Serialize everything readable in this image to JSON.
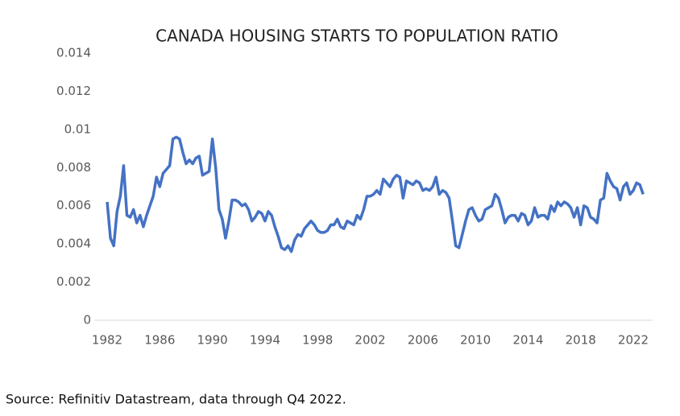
{
  "chart_data": {
    "type": "line",
    "title": "CANADA HOUSING STARTS TO POPULATION RATIO",
    "source": "Source: Refinitiv Datastream, data through Q4 2022.",
    "x": [
      1982,
      1982.25,
      1982.5,
      1982.75,
      1983,
      1983.25,
      1983.5,
      1983.75,
      1984,
      1984.25,
      1984.5,
      1984.75,
      1985,
      1985.25,
      1985.5,
      1985.75,
      1986,
      1986.25,
      1986.5,
      1986.75,
      1987,
      1987.25,
      1987.5,
      1987.75,
      1988,
      1988.25,
      1988.5,
      1988.75,
      1989,
      1989.25,
      1989.5,
      1989.75,
      1990,
      1990.25,
      1990.5,
      1990.75,
      1991,
      1991.25,
      1991.5,
      1991.75,
      1992,
      1992.25,
      1992.5,
      1992.75,
      1993,
      1993.25,
      1993.5,
      1993.75,
      1994,
      1994.25,
      1994.5,
      1994.75,
      1995,
      1995.25,
      1995.5,
      1995.75,
      1996,
      1996.25,
      1996.5,
      1996.75,
      1997,
      1997.25,
      1997.5,
      1997.75,
      1998,
      1998.25,
      1998.5,
      1998.75,
      1999,
      1999.25,
      1999.5,
      1999.75,
      2000,
      2000.25,
      2000.5,
      2000.75,
      2001,
      2001.25,
      2001.5,
      2001.75,
      2002,
      2002.25,
      2002.5,
      2002.75,
      2003,
      2003.25,
      2003.5,
      2003.75,
      2004,
      2004.25,
      2004.5,
      2004.75,
      2005,
      2005.25,
      2005.5,
      2005.75,
      2006,
      2006.25,
      2006.5,
      2006.75,
      2007,
      2007.25,
      2007.5,
      2007.75,
      2008,
      2008.25,
      2008.5,
      2008.75,
      2009,
      2009.25,
      2009.5,
      2009.75,
      2010,
      2010.25,
      2010.5,
      2010.75,
      2011,
      2011.25,
      2011.5,
      2011.75,
      2012,
      2012.25,
      2012.5,
      2012.75,
      2013,
      2013.25,
      2013.5,
      2013.75,
      2014,
      2014.25,
      2014.5,
      2014.75,
      2015,
      2015.25,
      2015.5,
      2015.75,
      2016,
      2016.25,
      2016.5,
      2016.75,
      2017,
      2017.25,
      2017.5,
      2017.75,
      2018,
      2018.25,
      2018.5,
      2018.75,
      2019,
      2019.25,
      2019.5,
      2019.75,
      2020,
      2020.25,
      2020.5,
      2020.75,
      2021,
      2021.25,
      2021.5,
      2021.75,
      2022,
      2022.25,
      2022.5,
      2022.75
    ],
    "series": [
      {
        "color": "#4472c4",
        "values": [
          0.0062,
          0.0043,
          0.0039,
          0.0057,
          0.0065,
          0.0081,
          0.0055,
          0.0054,
          0.0058,
          0.0051,
          0.0055,
          0.0049,
          0.0055,
          0.006,
          0.0065,
          0.0075,
          0.007,
          0.0077,
          0.0079,
          0.0081,
          0.0095,
          0.0096,
          0.0095,
          0.0088,
          0.0082,
          0.0084,
          0.0082,
          0.0085,
          0.0086,
          0.0076,
          0.0077,
          0.0078,
          0.0095,
          0.008,
          0.0058,
          0.0053,
          0.0043,
          0.0052,
          0.0063,
          0.0063,
          0.0062,
          0.006,
          0.0061,
          0.0058,
          0.0052,
          0.0054,
          0.0057,
          0.0056,
          0.0052,
          0.0057,
          0.0055,
          0.0049,
          0.0044,
          0.0038,
          0.0037,
          0.0039,
          0.0036,
          0.0042,
          0.0045,
          0.0044,
          0.0048,
          0.005,
          0.0052,
          0.005,
          0.0047,
          0.0046,
          0.0046,
          0.0047,
          0.005,
          0.005,
          0.0053,
          0.0049,
          0.0048,
          0.0052,
          0.0051,
          0.005,
          0.0055,
          0.0053,
          0.0058,
          0.0065,
          0.0065,
          0.0066,
          0.0068,
          0.0066,
          0.0074,
          0.0072,
          0.007,
          0.0074,
          0.0076,
          0.0075,
          0.0064,
          0.0073,
          0.0072,
          0.0071,
          0.0073,
          0.0072,
          0.0068,
          0.0069,
          0.0068,
          0.007,
          0.0075,
          0.0066,
          0.0068,
          0.0067,
          0.0064,
          0.0052,
          0.0039,
          0.0038,
          0.0045,
          0.0052,
          0.0058,
          0.0059,
          0.0055,
          0.0052,
          0.0053,
          0.0058,
          0.0059,
          0.006,
          0.0066,
          0.0064,
          0.0058,
          0.0051,
          0.0054,
          0.0055,
          0.0055,
          0.0052,
          0.0056,
          0.0055,
          0.005,
          0.0052,
          0.0059,
          0.0054,
          0.0055,
          0.0055,
          0.0053,
          0.006,
          0.0057,
          0.0062,
          0.006,
          0.0062,
          0.0061,
          0.0059,
          0.0054,
          0.0059,
          0.005,
          0.006,
          0.0059,
          0.0054,
          0.0053,
          0.0051,
          0.0063,
          0.0064,
          0.0077,
          0.0073,
          0.007,
          0.0069,
          0.0063,
          0.007,
          0.0072,
          0.0066,
          0.0068,
          0.0072,
          0.0071,
          0.0066
        ]
      }
    ],
    "xlim": [
      1981,
      2023.5
    ],
    "xticks": [
      1982,
      1986,
      1990,
      1994,
      1998,
      2002,
      2006,
      2010,
      2014,
      2018,
      2022
    ],
    "ylim": [
      0,
      0.014
    ],
    "yticks": [
      0,
      0.002,
      0.004,
      0.006,
      0.008,
      0.01,
      0.012,
      0.014
    ],
    "grid": false
  }
}
